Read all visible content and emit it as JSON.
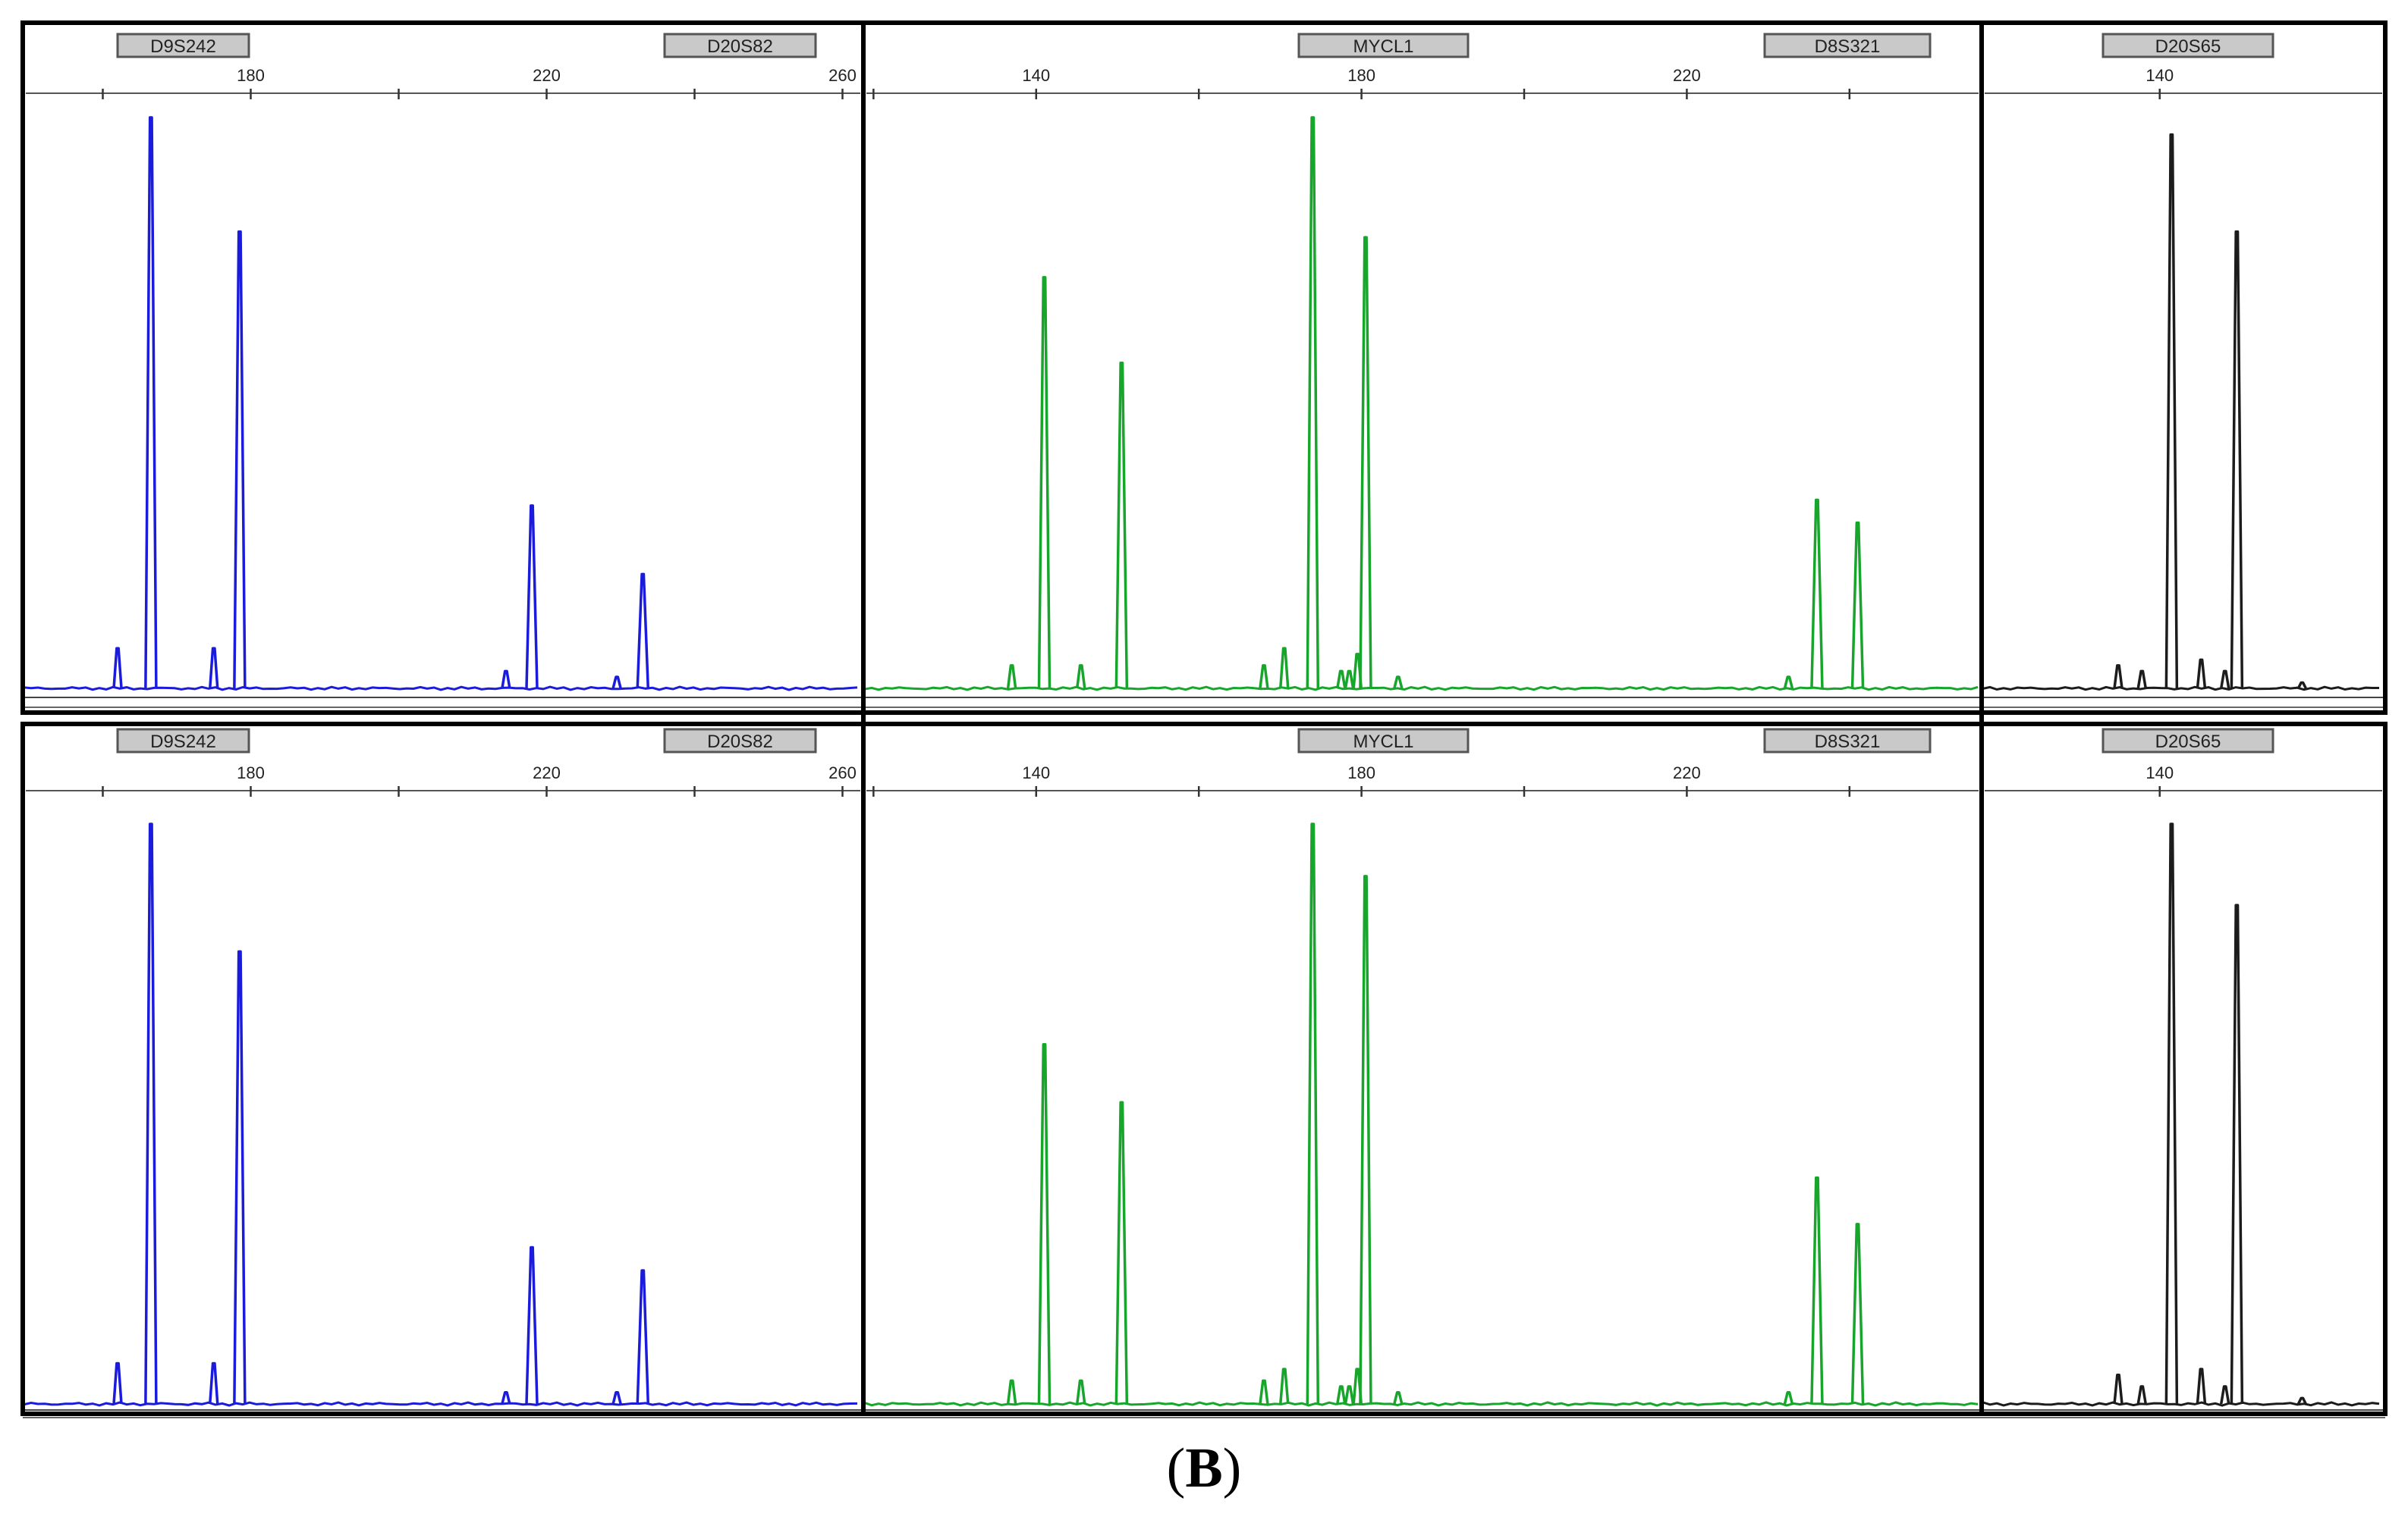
{
  "figure": {
    "caption_open": "(",
    "caption_letter": "B",
    "caption_close": ")"
  },
  "chart_data": [
    {
      "type": "line",
      "row": "top",
      "panel": "left",
      "color": "#1b1bdc",
      "markers": [
        "D9S242",
        "D20S82"
      ],
      "xlim": [
        150,
        262
      ],
      "ticks": [
        180,
        220,
        260
      ],
      "ylim": [
        0,
        1
      ],
      "peaks": [
        [
          162,
          0.07
        ],
        [
          166.5,
          1.0
        ],
        [
          175,
          0.07
        ],
        [
          178.5,
          0.8
        ],
        [
          214.5,
          0.03
        ],
        [
          218,
          0.32
        ],
        [
          229.5,
          0.02
        ],
        [
          233,
          0.2
        ]
      ]
    },
    {
      "type": "line",
      "row": "top",
      "panel": "middle",
      "color": "#17a62b",
      "markers": [
        "MYCL1",
        "D8S321"
      ],
      "xlim": [
        119.5,
        255.5
      ],
      "ticks": [
        140,
        180,
        220
      ],
      "ylim": [
        0,
        1
      ],
      "peaks": [
        [
          137,
          0.04
        ],
        [
          141,
          0.72
        ],
        [
          145.5,
          0.04
        ],
        [
          150.5,
          0.57
        ],
        [
          168,
          0.04
        ],
        [
          170.5,
          0.07
        ],
        [
          174,
          1.0
        ],
        [
          177.5,
          0.03
        ],
        [
          178.5,
          0.03
        ],
        [
          179.5,
          0.06
        ],
        [
          180.5,
          0.79
        ],
        [
          184.5,
          0.02
        ],
        [
          232.5,
          0.02
        ],
        [
          236,
          0.33
        ],
        [
          241,
          0.29
        ]
      ]
    },
    {
      "type": "line",
      "row": "top",
      "panel": "right",
      "color": "#1c1c1c",
      "markers": [
        "D20S65"
      ],
      "xlim": [
        125.5,
        158.5
      ],
      "ticks": [
        140
      ],
      "ylim": [
        0,
        1
      ],
      "peaks": [
        [
          136.5,
          0.04
        ],
        [
          138.5,
          0.03
        ],
        [
          141,
          0.97
        ],
        [
          143.5,
          0.05
        ],
        [
          145.5,
          0.03
        ],
        [
          146.5,
          0.8
        ],
        [
          152,
          0.01
        ]
      ]
    },
    {
      "type": "line",
      "row": "bottom",
      "panel": "left",
      "color": "#1b1bdc",
      "markers": [
        "D9S242",
        "D20S82"
      ],
      "xlim": [
        150,
        262
      ],
      "ticks": [
        180,
        220,
        260
      ],
      "ylim": [
        0,
        1
      ],
      "peaks": [
        [
          162,
          0.07
        ],
        [
          166.5,
          1.0
        ],
        [
          175,
          0.07
        ],
        [
          178.5,
          0.78
        ],
        [
          214.5,
          0.02
        ],
        [
          218,
          0.27
        ],
        [
          229.5,
          0.02
        ],
        [
          233,
          0.23
        ]
      ]
    },
    {
      "type": "line",
      "row": "bottom",
      "panel": "middle",
      "color": "#17a62b",
      "markers": [
        "MYCL1",
        "D8S321"
      ],
      "xlim": [
        119.5,
        255.5
      ],
      "ticks": [
        140,
        180,
        220
      ],
      "ylim": [
        0,
        1
      ],
      "peaks": [
        [
          137,
          0.04
        ],
        [
          141,
          0.62
        ],
        [
          145.5,
          0.04
        ],
        [
          150.5,
          0.52
        ],
        [
          168,
          0.04
        ],
        [
          170.5,
          0.06
        ],
        [
          174,
          1.0
        ],
        [
          177.5,
          0.03
        ],
        [
          178.5,
          0.03
        ],
        [
          179.5,
          0.06
        ],
        [
          180.5,
          0.91
        ],
        [
          184.5,
          0.02
        ],
        [
          232.5,
          0.02
        ],
        [
          236,
          0.39
        ],
        [
          241,
          0.31
        ]
      ]
    },
    {
      "type": "line",
      "row": "bottom",
      "panel": "right",
      "color": "#1c1c1c",
      "markers": [
        "D20S65"
      ],
      "xlim": [
        125.5,
        158.5
      ],
      "ticks": [
        140
      ],
      "ylim": [
        0,
        1
      ],
      "peaks": [
        [
          136.5,
          0.05
        ],
        [
          138.5,
          0.03
        ],
        [
          141,
          1.0
        ],
        [
          143.5,
          0.06
        ],
        [
          145.5,
          0.03
        ],
        [
          146.5,
          0.86
        ],
        [
          152,
          0.01
        ]
      ]
    }
  ]
}
